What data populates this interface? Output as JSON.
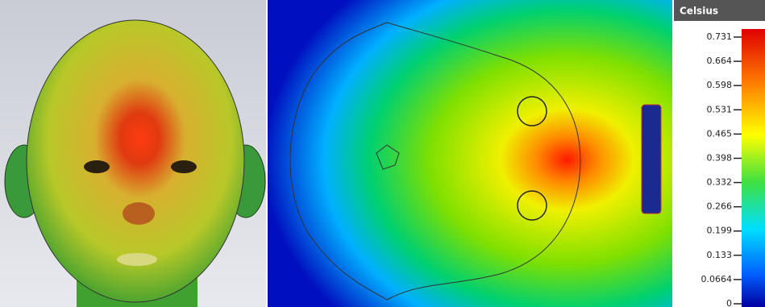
{
  "legend": {
    "title": "Celsius",
    "ticks": [
      0.731,
      0.664,
      0.598,
      0.531,
      0.465,
      0.398,
      0.332,
      0.266,
      0.199,
      0.133,
      0.0664,
      0
    ]
  }
}
